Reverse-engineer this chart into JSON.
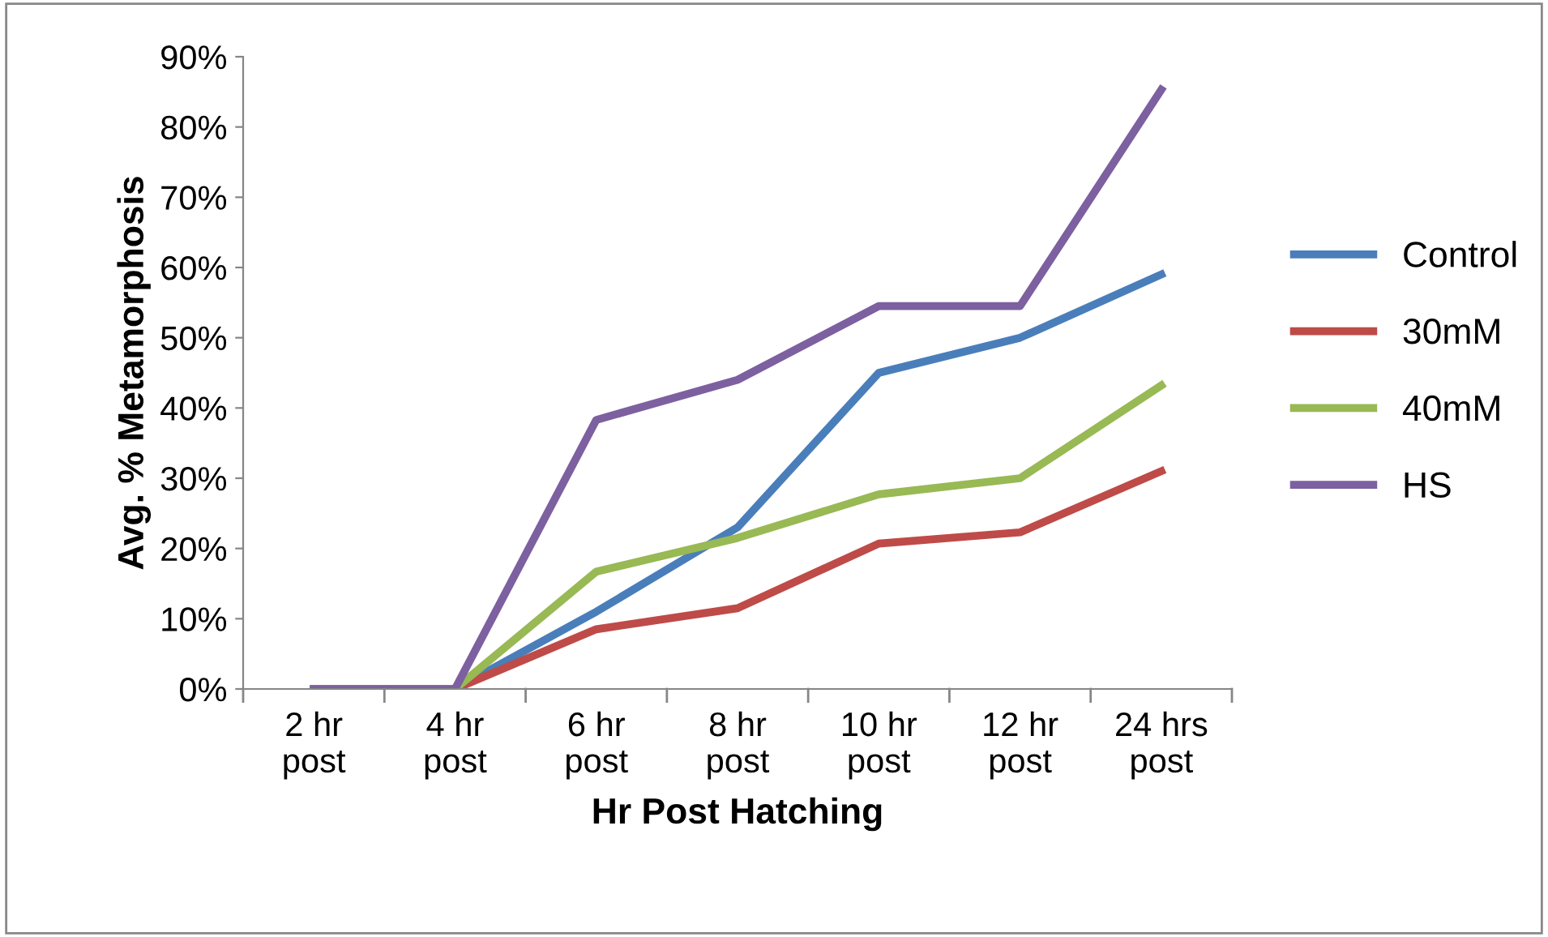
{
  "chart_data": {
    "type": "line",
    "xlabel": "Hr Post Hatching",
    "ylabel": "Avg. % Metamorphosis",
    "categories": [
      "2 hr\npost",
      "4 hr\npost",
      "6 hr\npost",
      "8 hr\npost",
      "10 hr\npost",
      "12 hr\npost",
      "24 hrs\npost"
    ],
    "series": [
      {
        "name": "Control",
        "color": "#4a7ebb",
        "values": [
          0,
          0,
          11,
          23,
          45,
          50,
          59
        ]
      },
      {
        "name": "30mM",
        "color": "#be4b48",
        "values": [
          0,
          0,
          8.5,
          11.5,
          20.7,
          22.3,
          31
        ]
      },
      {
        "name": "40mM",
        "color": "#98b954",
        "values": [
          0,
          0,
          16.7,
          21.5,
          27.7,
          30,
          43.2
        ]
      },
      {
        "name": "HS",
        "color": "#7d60a0",
        "values": [
          0,
          0,
          38.3,
          44,
          54.5,
          54.5,
          85.3
        ]
      }
    ],
    "ylim": [
      0,
      90
    ],
    "yticks": [
      {
        "value": 0,
        "label": "0%"
      },
      {
        "value": 10,
        "label": "10%"
      },
      {
        "value": 20,
        "label": "20%"
      },
      {
        "value": 30,
        "label": "30%"
      },
      {
        "value": 40,
        "label": "40%"
      },
      {
        "value": 50,
        "label": "50%"
      },
      {
        "value": 60,
        "label": "60%"
      },
      {
        "value": 70,
        "label": "70%"
      },
      {
        "value": 80,
        "label": "80%"
      },
      {
        "value": 90,
        "label": "90%"
      }
    ],
    "grid": false,
    "legend": "right",
    "marker": "none",
    "line_style": "solid"
  }
}
